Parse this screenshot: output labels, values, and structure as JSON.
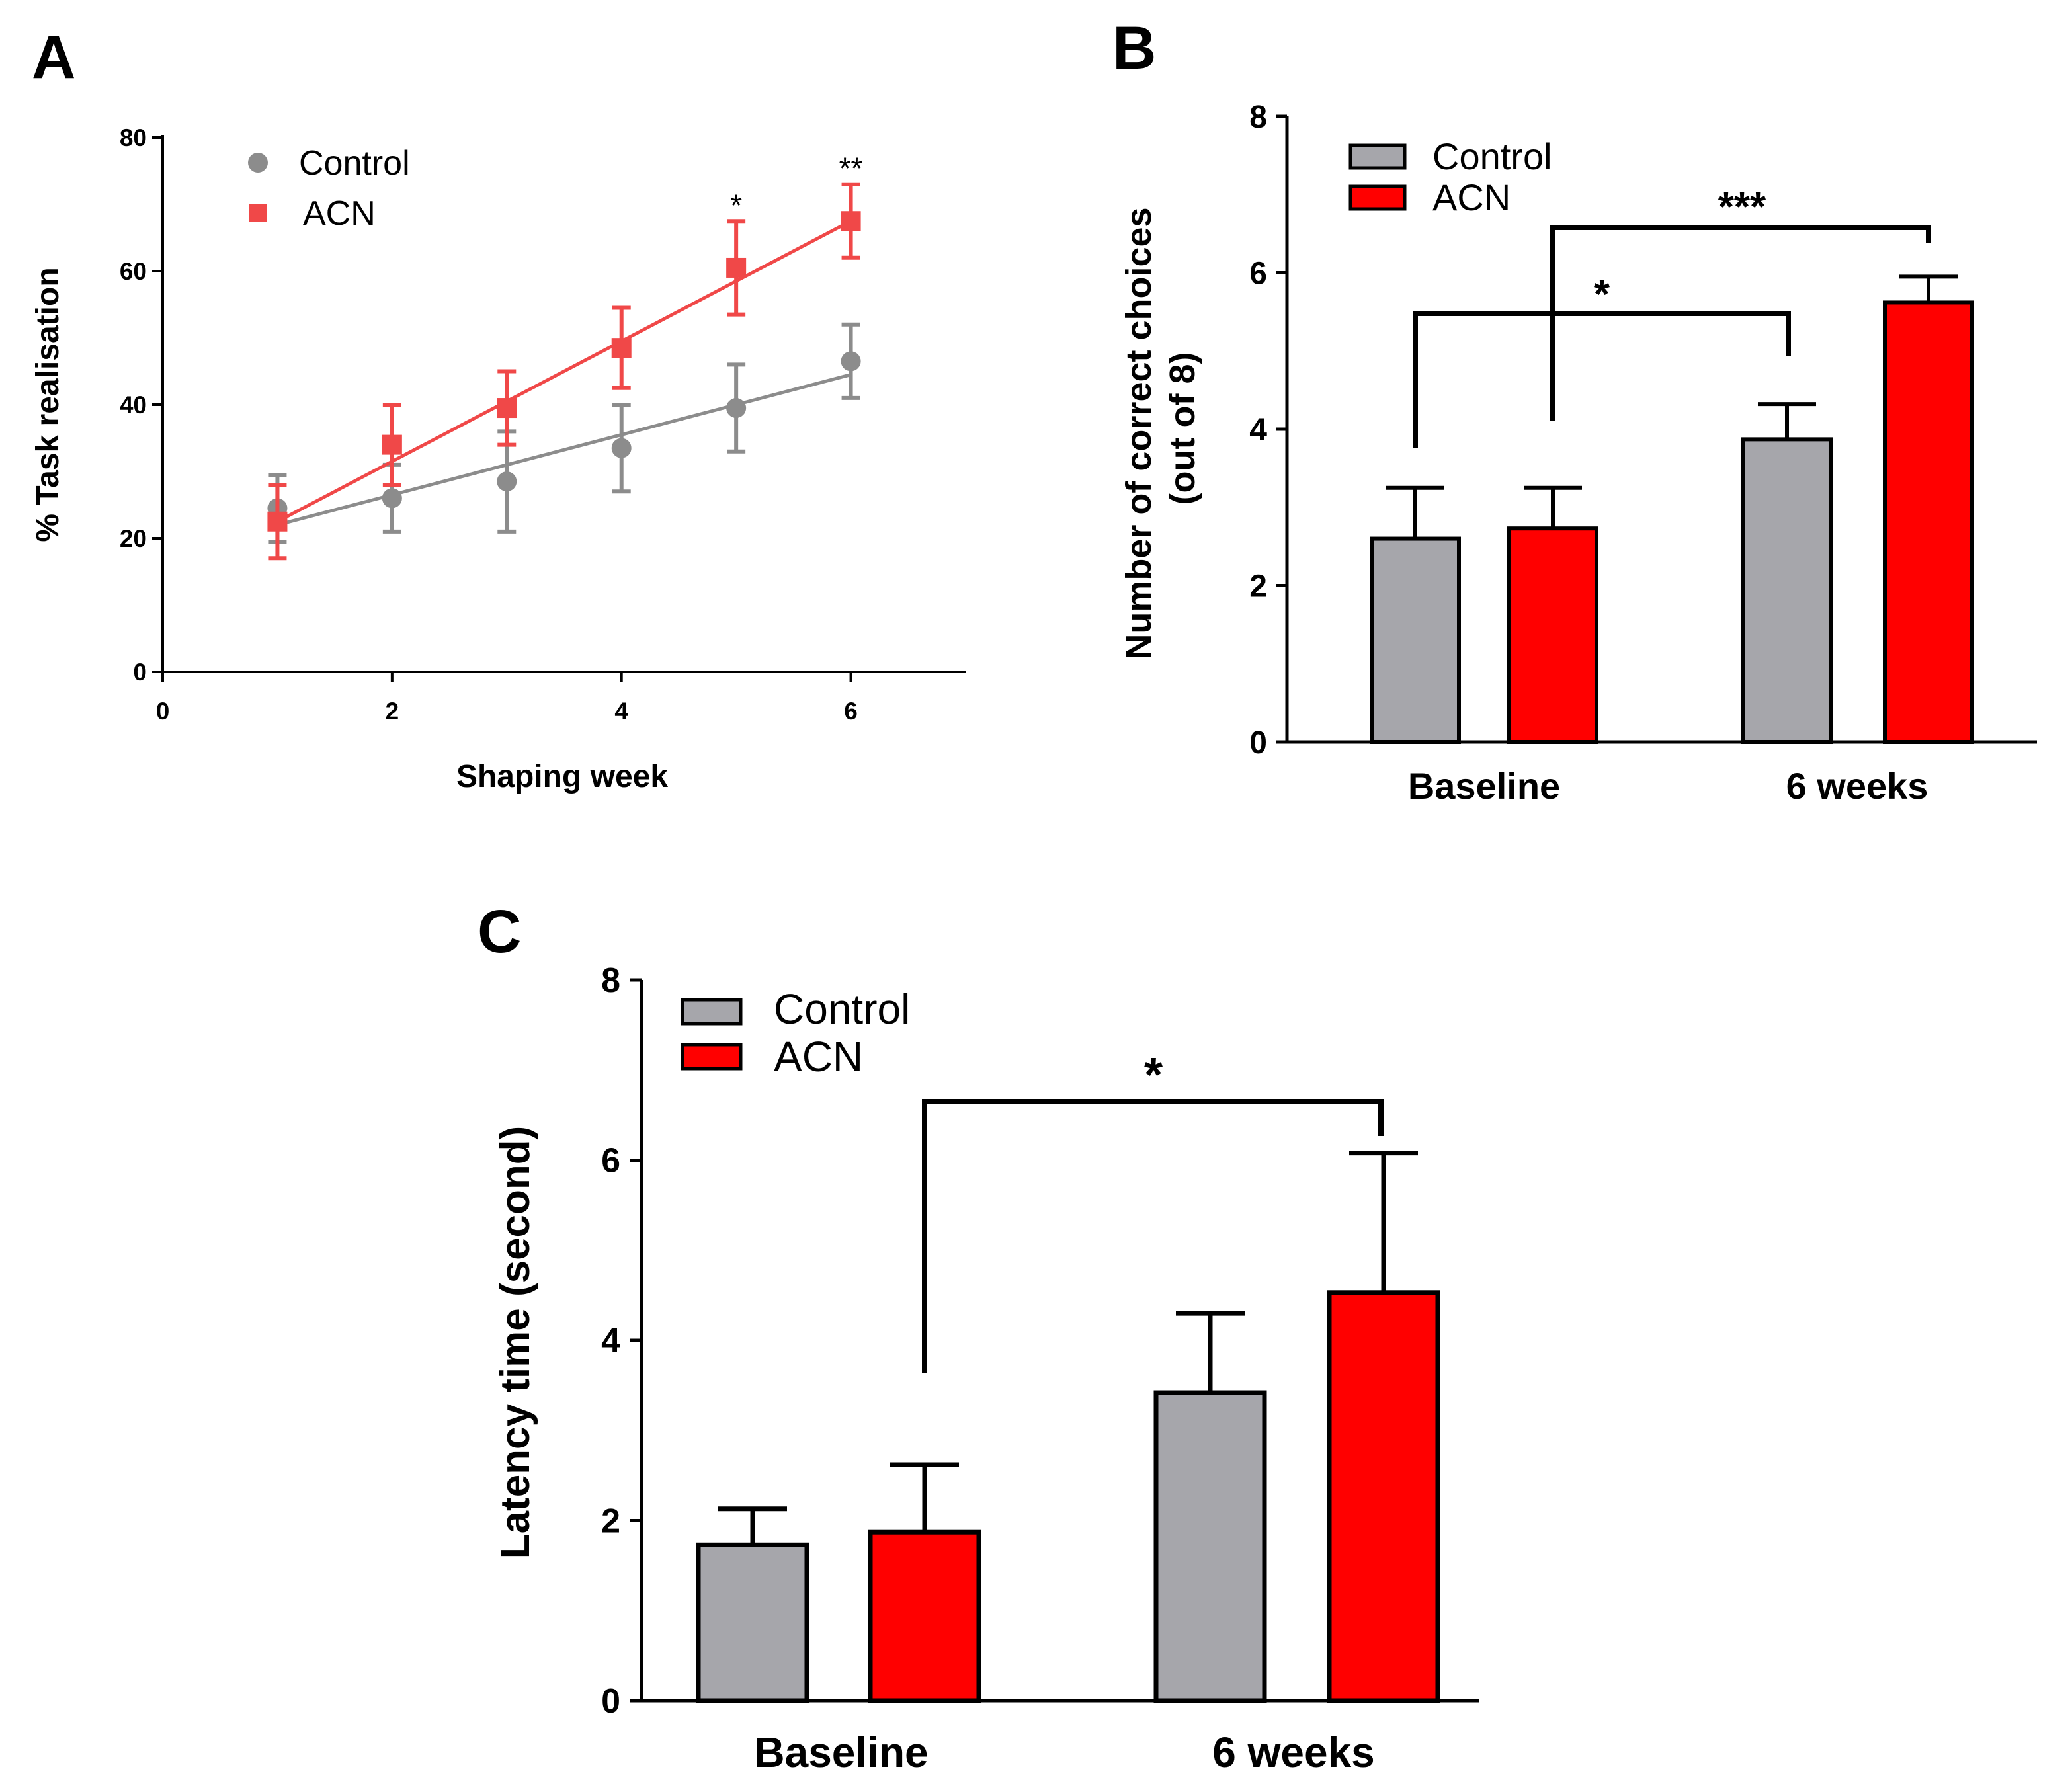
{
  "chart_data": [
    {
      "panel": "A",
      "type": "line",
      "title": "",
      "xlabel": "Shaping week",
      "ylabel": "% Task realisation",
      "xlim": [
        0,
        7
      ],
      "ylim": [
        0,
        80
      ],
      "xticks": [
        0,
        2,
        4,
        6
      ],
      "yticks": [
        0,
        20,
        40,
        60,
        80
      ],
      "legend_position": "top-left",
      "series": [
        {
          "name": "Control",
          "color": "#8c8c8c",
          "marker": "circle",
          "x": [
            1,
            2,
            3,
            4,
            5,
            6
          ],
          "y": [
            24.5,
            26,
            28.5,
            33.5,
            39.5,
            46.5
          ],
          "error": [
            5,
            5,
            7.5,
            6.5,
            6.5,
            5.5
          ],
          "fit": [
            [
              1,
              22
            ],
            [
              6,
              44.5
            ]
          ]
        },
        {
          "name": "ACN",
          "color": "#f04848",
          "marker": "square",
          "x": [
            1,
            2,
            3,
            4,
            5,
            6
          ],
          "y": [
            22.5,
            34,
            39.5,
            48.5,
            60.5,
            67.5
          ],
          "error": [
            5.5,
            6,
            5.5,
            6,
            7,
            5.5
          ],
          "fit": [
            [
              1,
              22.5
            ],
            [
              6,
              67.5
            ]
          ]
        }
      ],
      "annotations": [
        {
          "text": "*",
          "x": 5
        },
        {
          "text": "**",
          "x": 6
        }
      ]
    },
    {
      "panel": "B",
      "type": "bar",
      "title": "",
      "xlabel": "",
      "ylabel_lines": [
        "Number of correct choices",
        "(out of 8)"
      ],
      "ylim": [
        0,
        8
      ],
      "yticks": [
        0,
        2,
        4,
        6,
        8
      ],
      "categories": [
        "Baseline",
        "6 weeks"
      ],
      "legend_position": "top-left",
      "series": [
        {
          "name": "Control",
          "color": "#a6a6ab",
          "values": [
            2.6,
            3.87
          ],
          "errors": [
            0.65,
            0.45
          ]
        },
        {
          "name": "ACN",
          "color": "#ff0000",
          "values": [
            2.73,
            5.62
          ],
          "errors": [
            0.52,
            0.33
          ]
        }
      ],
      "significance": [
        {
          "text": "*",
          "from": "Baseline Control",
          "to": "6 weeks Control"
        },
        {
          "text": "***",
          "from": "Baseline ACN",
          "to": "6 weeks ACN"
        }
      ]
    },
    {
      "panel": "C",
      "type": "bar",
      "title": "",
      "xlabel": "",
      "ylabel": "Latency time (second)",
      "ylim": [
        0,
        8
      ],
      "yticks": [
        0,
        2,
        4,
        6,
        8
      ],
      "categories": [
        "Baseline",
        "6 weeks"
      ],
      "legend_position": "top-left",
      "series": [
        {
          "name": "Control",
          "color": "#a6a6ab",
          "values": [
            1.73,
            3.42
          ],
          "errors": [
            0.4,
            0.88
          ]
        },
        {
          "name": "ACN",
          "color": "#ff0000",
          "values": [
            1.87,
            4.53
          ],
          "errors": [
            0.75,
            1.55
          ]
        }
      ],
      "significance": [
        {
          "text": "*",
          "from": "Baseline ACN",
          "to": "6 weeks ACN"
        }
      ]
    }
  ]
}
